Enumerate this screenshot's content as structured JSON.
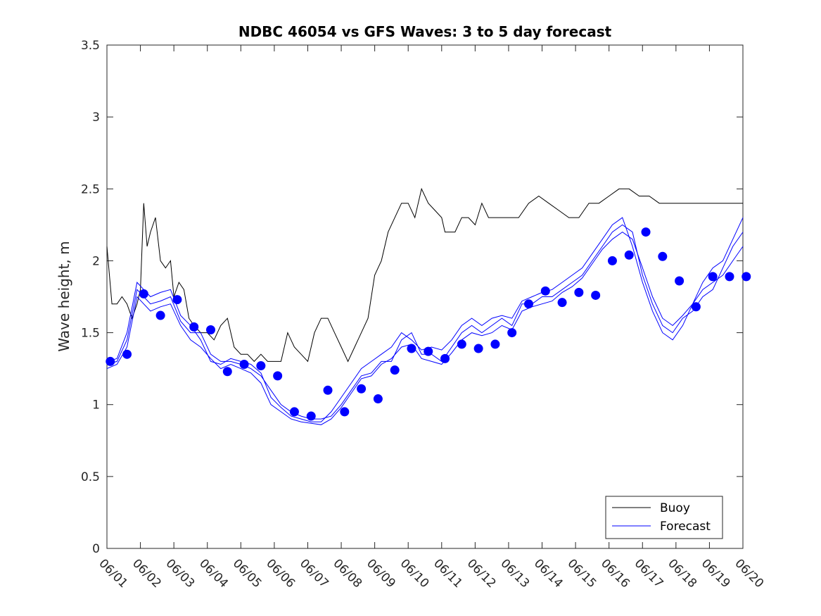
{
  "chart_data": {
    "type": "line",
    "title": "NDBC 46054 vs GFS Waves: 3 to 5 day forecast",
    "xlabel": "",
    "ylabel": "Wave height, m",
    "xlim": [
      0,
      19
    ],
    "ylim": [
      0,
      3.5
    ],
    "x_ticks": [
      0,
      1,
      2,
      3,
      4,
      5,
      6,
      7,
      8,
      9,
      10,
      11,
      12,
      13,
      14,
      15,
      16,
      17,
      18,
      19
    ],
    "x_tick_labels": [
      "06/01",
      "06/02",
      "06/03",
      "06/04",
      "06/05",
      "06/06",
      "06/07",
      "06/08",
      "06/09",
      "06/10",
      "06/11",
      "06/12",
      "06/13",
      "06/14",
      "06/15",
      "06/16",
      "06/17",
      "06/18",
      "06/19",
      "06/20"
    ],
    "y_ticks": [
      0,
      0.5,
      1,
      1.5,
      2,
      2.5,
      3,
      3.5
    ],
    "y_tick_labels": [
      "0",
      "0.5",
      "1",
      "1.5",
      "2",
      "2.5",
      "3",
      "3.5"
    ],
    "legend": {
      "position": "bottom-right",
      "entries": [
        "Buoy",
        "Forecast"
      ]
    },
    "colors": {
      "buoy": "#000000",
      "forecast": "#0000ff"
    },
    "series": [
      {
        "name": "Buoy",
        "x": [
          0,
          0.15,
          0.3,
          0.45,
          0.6,
          0.75,
          0.9,
          1.0,
          1.1,
          1.2,
          1.3,
          1.45,
          1.6,
          1.75,
          1.9,
          2.0,
          2.15,
          2.3,
          2.45,
          2.6,
          2.8,
          3.0,
          3.2,
          3.4,
          3.6,
          3.8,
          4.0,
          4.2,
          4.4,
          4.6,
          4.8,
          5.0,
          5.2,
          5.4,
          5.6,
          5.8,
          6.0,
          6.2,
          6.4,
          6.6,
          6.8,
          7.0,
          7.2,
          7.4,
          7.6,
          7.8,
          8.0,
          8.2,
          8.4,
          8.6,
          8.8,
          9.0,
          9.2,
          9.4,
          9.6,
          9.8,
          10.0,
          10.1,
          10.2,
          10.4,
          10.6,
          10.8,
          11.0,
          11.2,
          11.4,
          11.6,
          11.8,
          12.0,
          12.3,
          12.6,
          12.9,
          13.2,
          13.5,
          13.8,
          14.1,
          14.4,
          14.7,
          15.0,
          15.3,
          15.6,
          15.9,
          16.2,
          16.5,
          16.8,
          17.1,
          17.4,
          17.7,
          18.0,
          18.3,
          18.6,
          18.9,
          19.0
        ],
        "values": [
          2.1,
          1.7,
          1.7,
          1.75,
          1.7,
          1.6,
          1.7,
          1.8,
          2.4,
          2.1,
          2.2,
          2.3,
          2.0,
          1.95,
          2.0,
          1.75,
          1.85,
          1.8,
          1.6,
          1.55,
          1.5,
          1.5,
          1.45,
          1.55,
          1.6,
          1.4,
          1.35,
          1.35,
          1.3,
          1.35,
          1.3,
          1.3,
          1.3,
          1.5,
          1.4,
          1.35,
          1.3,
          1.5,
          1.6,
          1.6,
          1.5,
          1.4,
          1.3,
          1.4,
          1.5,
          1.6,
          1.9,
          2.0,
          2.2,
          2.3,
          2.4,
          2.4,
          2.3,
          2.5,
          2.4,
          2.35,
          2.3,
          2.2,
          2.2,
          2.2,
          2.3,
          2.3,
          2.25,
          2.4,
          2.3,
          2.3,
          2.3,
          2.3,
          2.3,
          2.4,
          2.45,
          2.4,
          2.35,
          2.3,
          2.3,
          2.4,
          2.4,
          2.45,
          2.5,
          2.5,
          2.45,
          2.45,
          2.4,
          2.4,
          2.4,
          2.4,
          2.4,
          2.4,
          2.4,
          2.4,
          2.4,
          2.4
        ]
      },
      {
        "name": "Forecast",
        "x": [
          0,
          0.3,
          0.6,
          0.9,
          1.1,
          1.3,
          1.6,
          1.9,
          2.2,
          2.5,
          2.8,
          3.1,
          3.4,
          3.7,
          4.0,
          4.3,
          4.6,
          4.9,
          5.2,
          5.5,
          5.8,
          6.1,
          6.4,
          6.7,
          7.0,
          7.3,
          7.6,
          7.9,
          8.2,
          8.5,
          8.8,
          9.1,
          9.4,
          9.7,
          10.0,
          10.3,
          10.6,
          10.9,
          11.2,
          11.5,
          11.8,
          12.1,
          12.4,
          12.7,
          13.0,
          13.3,
          13.6,
          13.9,
          14.2,
          14.5,
          14.8,
          15.1,
          15.4,
          15.7,
          16.0,
          16.3,
          16.6,
          16.9,
          17.2,
          17.5,
          17.8,
          18.1,
          18.4,
          18.7,
          19.0
        ],
        "values": [
          1.28,
          1.3,
          1.45,
          1.8,
          1.75,
          1.7,
          1.72,
          1.75,
          1.58,
          1.5,
          1.5,
          1.35,
          1.3,
          1.3,
          1.28,
          1.25,
          1.2,
          1.1,
          1.0,
          0.95,
          0.92,
          0.9,
          0.9,
          0.92,
          1.0,
          1.1,
          1.2,
          1.22,
          1.3,
          1.3,
          1.45,
          1.5,
          1.35,
          1.35,
          1.3,
          1.4,
          1.5,
          1.55,
          1.5,
          1.55,
          1.6,
          1.55,
          1.7,
          1.7,
          1.75,
          1.75,
          1.8,
          1.85,
          1.9,
          2.0,
          2.1,
          2.2,
          2.25,
          2.2,
          1.9,
          1.7,
          1.55,
          1.5,
          1.6,
          1.65,
          1.75,
          1.8,
          1.95,
          2.1,
          2.2
        ]
      },
      {
        "name": "Forecast",
        "x": [
          0,
          0.3,
          0.6,
          0.9,
          1.1,
          1.3,
          1.6,
          1.9,
          2.2,
          2.5,
          2.8,
          3.1,
          3.4,
          3.7,
          4.0,
          4.3,
          4.6,
          4.9,
          5.2,
          5.5,
          5.8,
          6.1,
          6.4,
          6.7,
          7.0,
          7.3,
          7.6,
          7.9,
          8.2,
          8.5,
          8.8,
          9.1,
          9.4,
          9.7,
          10.0,
          10.3,
          10.6,
          10.9,
          11.2,
          11.5,
          11.8,
          12.1,
          12.4,
          12.7,
          13.0,
          13.3,
          13.6,
          13.9,
          14.2,
          14.5,
          14.8,
          15.1,
          15.4,
          15.7,
          16.0,
          16.3,
          16.6,
          16.9,
          17.2,
          17.5,
          17.8,
          18.1,
          18.4,
          18.7,
          19.0
        ],
        "values": [
          1.3,
          1.32,
          1.5,
          1.85,
          1.8,
          1.75,
          1.78,
          1.8,
          1.62,
          1.55,
          1.45,
          1.3,
          1.28,
          1.32,
          1.3,
          1.28,
          1.22,
          1.05,
          0.98,
          0.92,
          0.9,
          0.88,
          0.88,
          0.95,
          1.05,
          1.15,
          1.25,
          1.3,
          1.35,
          1.4,
          1.5,
          1.45,
          1.38,
          1.4,
          1.38,
          1.45,
          1.55,
          1.6,
          1.55,
          1.6,
          1.62,
          1.6,
          1.72,
          1.75,
          1.78,
          1.8,
          1.85,
          1.9,
          1.95,
          2.05,
          2.15,
          2.25,
          2.3,
          2.1,
          1.85,
          1.65,
          1.5,
          1.45,
          1.55,
          1.7,
          1.85,
          1.95,
          2.0,
          2.15,
          2.3
        ]
      },
      {
        "name": "Forecast",
        "x": [
          0,
          0.3,
          0.6,
          0.9,
          1.1,
          1.3,
          1.6,
          1.9,
          2.2,
          2.5,
          2.8,
          3.1,
          3.4,
          3.7,
          4.0,
          4.3,
          4.6,
          4.9,
          5.2,
          5.5,
          5.8,
          6.1,
          6.4,
          6.7,
          7.0,
          7.3,
          7.6,
          7.9,
          8.2,
          8.5,
          8.8,
          9.1,
          9.4,
          9.7,
          10.0,
          10.3,
          10.6,
          10.9,
          11.2,
          11.5,
          11.8,
          12.1,
          12.4,
          12.7,
          13.0,
          13.3,
          13.6,
          13.9,
          14.2,
          14.5,
          14.8,
          15.1,
          15.4,
          15.7,
          16.0,
          16.3,
          16.6,
          16.9,
          17.2,
          17.5,
          17.8,
          18.1,
          18.4,
          18.7,
          19.0
        ],
        "values": [
          1.25,
          1.28,
          1.4,
          1.75,
          1.7,
          1.65,
          1.68,
          1.7,
          1.55,
          1.45,
          1.4,
          1.32,
          1.25,
          1.28,
          1.25,
          1.22,
          1.15,
          1.0,
          0.95,
          0.9,
          0.88,
          0.87,
          0.86,
          0.9,
          0.98,
          1.08,
          1.18,
          1.2,
          1.28,
          1.32,
          1.4,
          1.42,
          1.32,
          1.3,
          1.28,
          1.36,
          1.45,
          1.5,
          1.48,
          1.5,
          1.55,
          1.52,
          1.65,
          1.68,
          1.7,
          1.72,
          1.78,
          1.82,
          1.88,
          1.98,
          2.08,
          2.15,
          2.2,
          2.15,
          1.95,
          1.75,
          1.6,
          1.55,
          1.62,
          1.7,
          1.8,
          1.85,
          1.9,
          2.0,
          2.1
        ]
      }
    ],
    "forecast_points": {
      "x": [
        0.1,
        0.6,
        1.1,
        1.6,
        2.1,
        2.6,
        3.1,
        3.6,
        4.1,
        4.6,
        5.1,
        5.6,
        6.1,
        6.6,
        7.1,
        7.6,
        8.1,
        8.6,
        9.1,
        9.6,
        10.1,
        10.6,
        11.1,
        11.6,
        12.1,
        12.6,
        13.1,
        13.6,
        14.1,
        14.6,
        15.1,
        15.6,
        16.1,
        16.6,
        17.1,
        17.6,
        18.1,
        18.6,
        19.1
      ],
      "values": [
        1.3,
        1.35,
        1.77,
        1.62,
        1.73,
        1.54,
        1.52,
        1.23,
        1.28,
        1.27,
        1.2,
        0.95,
        0.92,
        1.1,
        0.95,
        1.11,
        1.04,
        1.24,
        1.39,
        1.37,
        1.32,
        1.42,
        1.39,
        1.42,
        1.5,
        1.7,
        1.79,
        1.71,
        1.78,
        1.76,
        2.0,
        2.04,
        2.2,
        2.03,
        1.86,
        1.68,
        1.89,
        1.89,
        1.89
      ]
    }
  }
}
